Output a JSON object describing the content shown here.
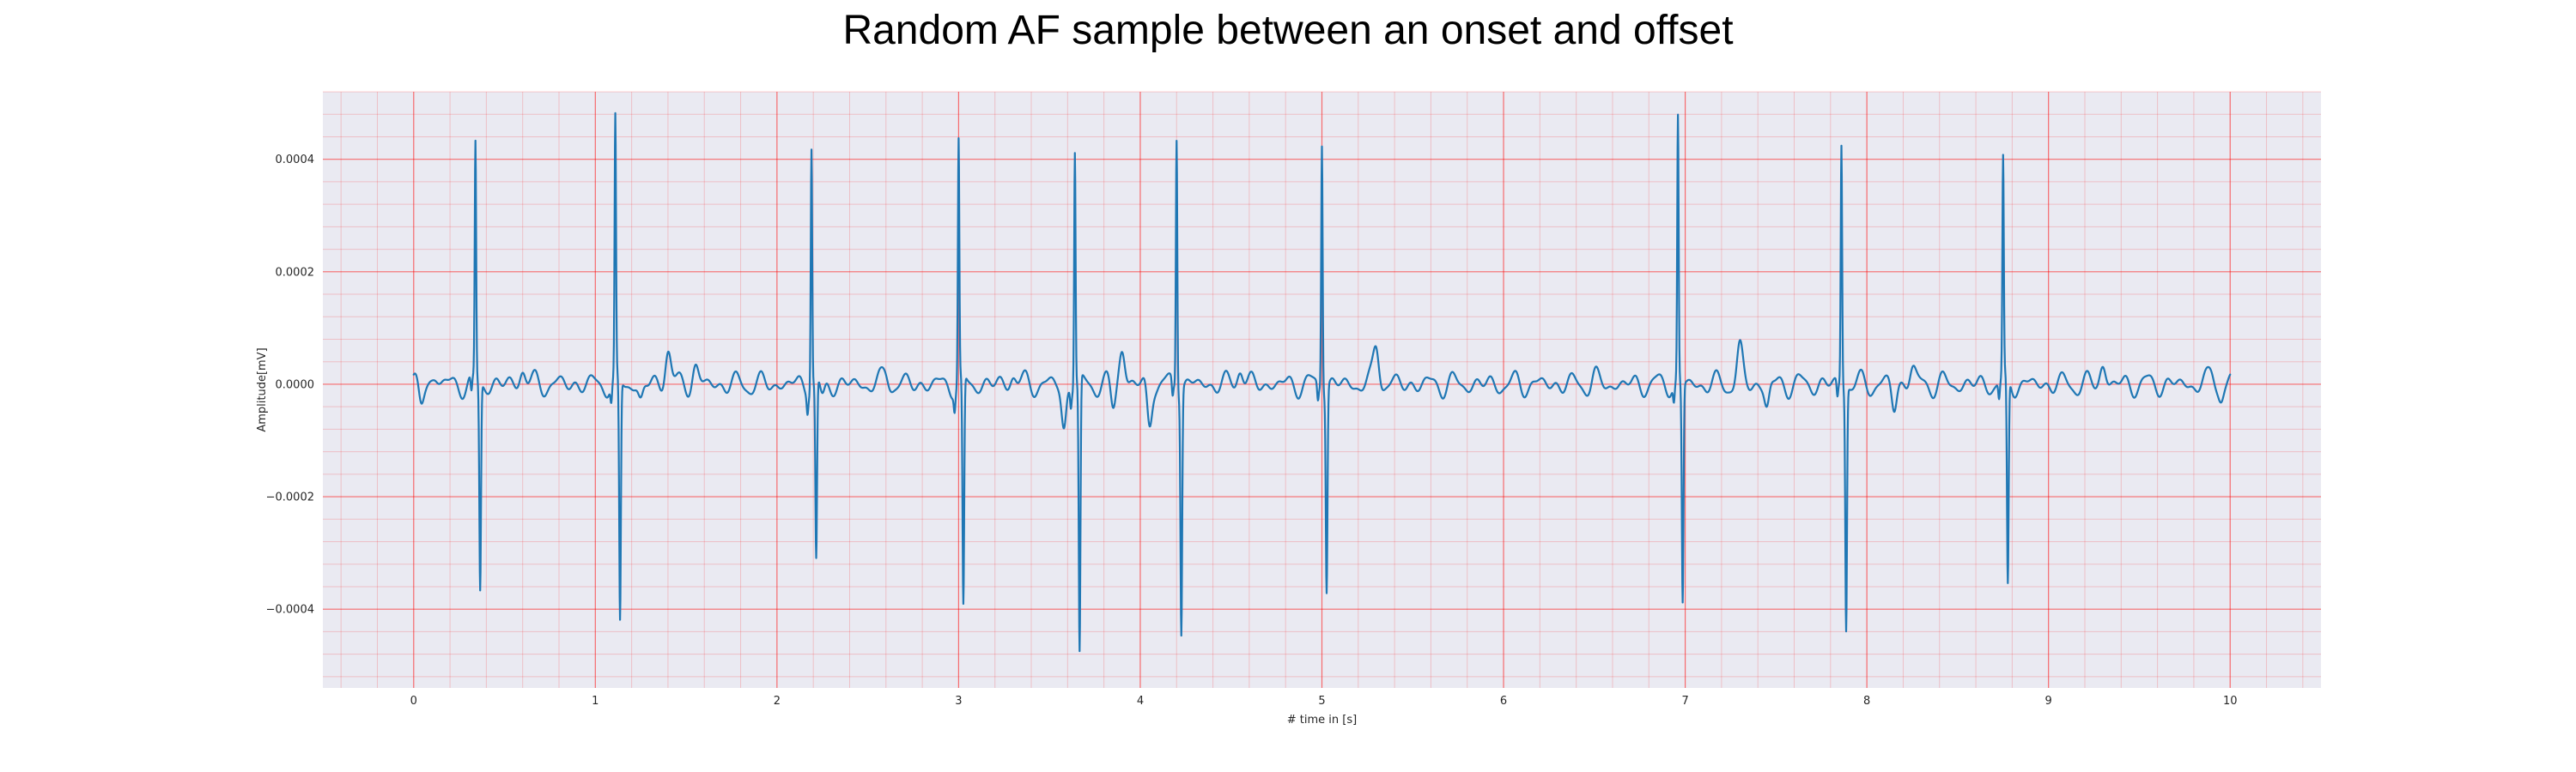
{
  "chart_data": {
    "type": "line",
    "title": "Random AF sample between an onset and offset",
    "xlabel": "# time in [s]",
    "ylabel": "Amplitude[mV]",
    "xlim": [
      -0.5,
      10.5
    ],
    "ylim": [
      -0.00054,
      0.00052
    ],
    "xticks": [
      0,
      1,
      2,
      3,
      4,
      5,
      6,
      7,
      8,
      9,
      10
    ],
    "xtick_labels": [
      "0",
      "1",
      "2",
      "3",
      "4",
      "5",
      "6",
      "7",
      "8",
      "9",
      "10"
    ],
    "yticks": [
      0.0004,
      0.0002,
      0.0,
      -0.0002,
      -0.0004
    ],
    "ytick_labels": [
      "0.0004",
      "0.0002",
      "0.0000",
      "−0.0002",
      "−0.0004"
    ],
    "major_grid": true,
    "minor_grid": true,
    "grid_color": "#ff0000",
    "background_color": "#eaeaf2",
    "line_color": "#1f77b4",
    "beats": [
      {
        "t": 0.34,
        "peak": 0.00042,
        "trough": -0.00037
      },
      {
        "t": 1.11,
        "peak": 0.00046,
        "trough": -0.00043
      },
      {
        "t": 2.19,
        "peak": 0.00043,
        "trough": -0.00032
      },
      {
        "t": 3.0,
        "peak": 0.00043,
        "trough": -0.00041
      },
      {
        "t": 3.64,
        "peak": 0.00042,
        "trough": -0.00049
      },
      {
        "t": 4.2,
        "peak": 0.00045,
        "trough": -0.00043
      },
      {
        "t": 5.0,
        "peak": 0.00044,
        "trough": -0.00036
      },
      {
        "t": 6.96,
        "peak": 0.00047,
        "trough": -0.00039
      },
      {
        "t": 7.86,
        "peak": 0.00043,
        "trough": -0.00043
      },
      {
        "t": 8.75,
        "peak": 0.00039,
        "trough": -0.00037
      }
    ],
    "baseline_wave_peaks": [
      {
        "t": 0.12,
        "y": 1.5e-05
      },
      {
        "t": 0.6,
        "y": 3e-05
      },
      {
        "t": 1.4,
        "y": 6.5e-05
      },
      {
        "t": 1.55,
        "y": 3e-05
      },
      {
        "t": 2.6,
        "y": 2e-05
      },
      {
        "t": 3.3,
        "y": 2e-05
      },
      {
        "t": 3.9,
        "y": 6.5e-05
      },
      {
        "t": 4.55,
        "y": 3.5e-05
      },
      {
        "t": 5.3,
        "y": 7e-05
      },
      {
        "t": 6.5,
        "y": 1e-05
      },
      {
        "t": 7.3,
        "y": 6e-05
      },
      {
        "t": 8.25,
        "y": 3e-05
      },
      {
        "t": 9.3,
        "y": 3.5e-05
      },
      {
        "t": 9.9,
        "y": 2e-05
      }
    ],
    "baseline_wave_troughs": [
      {
        "t": 0.04,
        "y": -3e-05
      },
      {
        "t": 1.25,
        "y": -3e-05
      },
      {
        "t": 2.25,
        "y": -3e-05
      },
      {
        "t": 3.58,
        "y": -8e-05
      },
      {
        "t": 3.85,
        "y": -4e-05
      },
      {
        "t": 4.05,
        "y": -7e-05
      },
      {
        "t": 7.45,
        "y": -4e-05
      },
      {
        "t": 8.15,
        "y": -4e-05
      },
      {
        "t": 9.95,
        "y": -2e-05
      }
    ],
    "x_end": 10.0
  }
}
